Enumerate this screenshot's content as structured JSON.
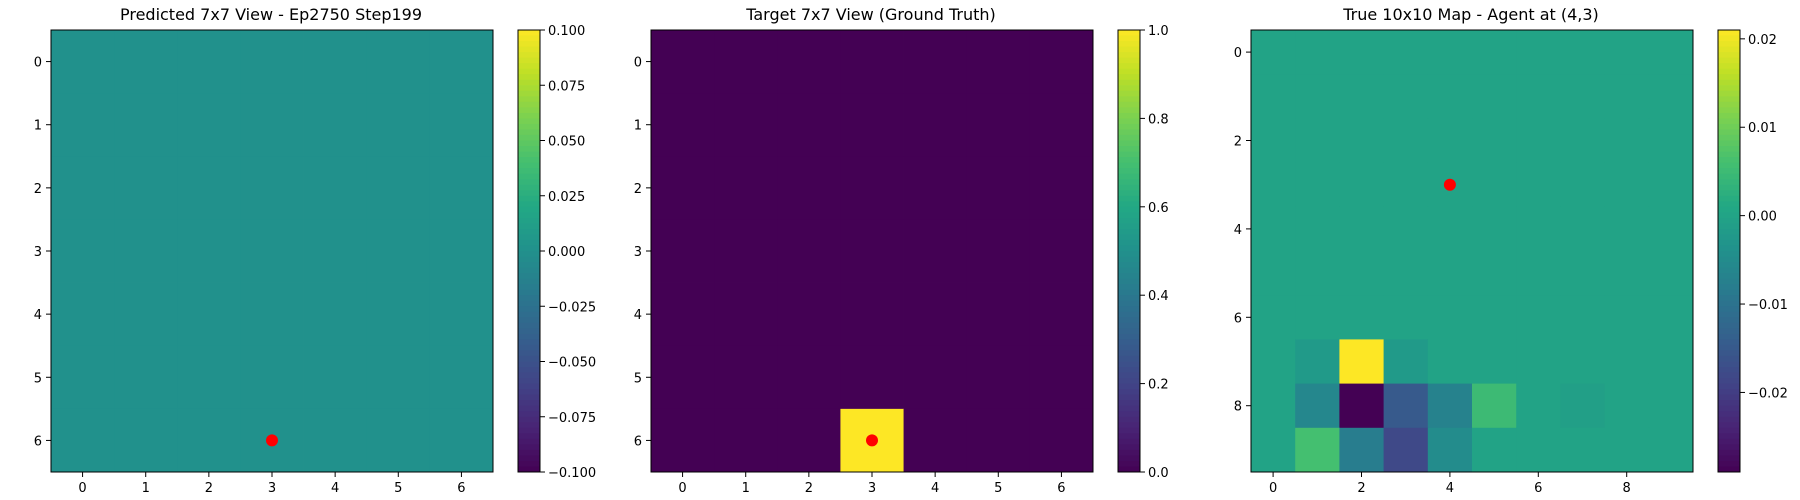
{
  "chart_data": [
    {
      "type": "heatmap",
      "title": "Predicted 7x7 View - Ep2750 Step199",
      "colormap": "viridis",
      "vmin": -0.1,
      "vmax": 0.1,
      "xticks": [
        "0",
        "1",
        "2",
        "3",
        "4",
        "5",
        "6"
      ],
      "yticks": [
        "0",
        "1",
        "2",
        "3",
        "4",
        "5",
        "6"
      ],
      "colorbar_ticks": [
        "−0.100",
        "−0.075",
        "−0.050",
        "−0.025",
        "0.000",
        "0.025",
        "0.050",
        "0.075",
        "0.100"
      ],
      "colorbar_tick_values": [
        -0.1,
        -0.075,
        -0.05,
        -0.025,
        0.0,
        0.025,
        0.05,
        0.075,
        0.1
      ],
      "marker": {
        "x": 3,
        "y": 6,
        "color": "#ff0000"
      },
      "grid": false,
      "values": [
        [
          0,
          0,
          0,
          0,
          0,
          0,
          0
        ],
        [
          0,
          0,
          0,
          0,
          0,
          0,
          0
        ],
        [
          0,
          0,
          0,
          0,
          0,
          0,
          0
        ],
        [
          0,
          0,
          0,
          0,
          0,
          0,
          0
        ],
        [
          0,
          0,
          0,
          0,
          0,
          0,
          0
        ],
        [
          0,
          0,
          0,
          0,
          0,
          0,
          0
        ],
        [
          0,
          0,
          0,
          0,
          0,
          0,
          0
        ]
      ]
    },
    {
      "type": "heatmap",
      "title": "Target 7x7 View (Ground Truth)",
      "colormap": "viridis",
      "vmin": 0.0,
      "vmax": 1.0,
      "xticks": [
        "0",
        "1",
        "2",
        "3",
        "4",
        "5",
        "6"
      ],
      "yticks": [
        "0",
        "1",
        "2",
        "3",
        "4",
        "5",
        "6"
      ],
      "colorbar_ticks": [
        "0.0",
        "0.2",
        "0.4",
        "0.6",
        "0.8",
        "1.0"
      ],
      "colorbar_tick_values": [
        0.0,
        0.2,
        0.4,
        0.6,
        0.8,
        1.0
      ],
      "marker": {
        "x": 3,
        "y": 6,
        "color": "#ff0000"
      },
      "grid": false,
      "values": [
        [
          0,
          0,
          0,
          0,
          0,
          0,
          0
        ],
        [
          0,
          0,
          0,
          0,
          0,
          0,
          0
        ],
        [
          0,
          0,
          0,
          0,
          0,
          0,
          0
        ],
        [
          0,
          0,
          0,
          0,
          0,
          0,
          0
        ],
        [
          0,
          0,
          0,
          0,
          0,
          0,
          0
        ],
        [
          0,
          0,
          0,
          0,
          0,
          0,
          0
        ],
        [
          0,
          0,
          0,
          1,
          0,
          0,
          0
        ]
      ]
    },
    {
      "type": "heatmap",
      "title": "True 10x10 Map - Agent at (4,3)",
      "colormap": "viridis",
      "vmin": -0.029,
      "vmax": 0.021,
      "xticks": [
        "0",
        "2",
        "4",
        "6",
        "8"
      ],
      "xtick_values": [
        0,
        2,
        4,
        6,
        8
      ],
      "yticks": [
        "0",
        "2",
        "4",
        "6",
        "8"
      ],
      "ytick_values": [
        0,
        2,
        4,
        6,
        8
      ],
      "colorbar_ticks": [
        "−0.02",
        "−0.01",
        "0.00",
        "0.01",
        "0.02"
      ],
      "colorbar_tick_values": [
        -0.02,
        -0.01,
        0.0,
        0.01,
        0.02
      ],
      "marker": {
        "x": 4,
        "y": 3,
        "color": "#ff0000"
      },
      "grid": false,
      "values": [
        [
          0,
          0,
          0,
          0,
          0,
          0,
          0,
          0,
          0,
          0
        ],
        [
          0,
          0,
          0,
          0,
          0,
          0,
          0,
          0,
          0,
          0
        ],
        [
          0,
          0,
          0,
          0,
          0,
          0,
          0,
          0,
          0,
          0
        ],
        [
          0,
          0,
          0,
          0,
          0,
          0,
          0,
          0,
          0,
          0
        ],
        [
          0,
          0,
          0,
          0,
          0,
          0,
          0,
          0,
          0,
          0
        ],
        [
          0,
          0,
          0,
          0,
          0,
          0,
          0,
          0,
          0,
          0
        ],
        [
          0,
          0,
          0,
          0,
          0,
          0,
          0,
          0,
          0,
          0
        ],
        [
          0,
          -0.002,
          0.021,
          -0.002,
          0,
          0,
          0,
          0,
          0,
          0
        ],
        [
          0,
          -0.006,
          -0.029,
          -0.015,
          -0.007,
          0.005,
          0,
          -0.001,
          0,
          0
        ],
        [
          0,
          0.006,
          -0.008,
          -0.018,
          -0.005,
          0,
          0,
          0,
          0,
          0
        ]
      ]
    }
  ]
}
